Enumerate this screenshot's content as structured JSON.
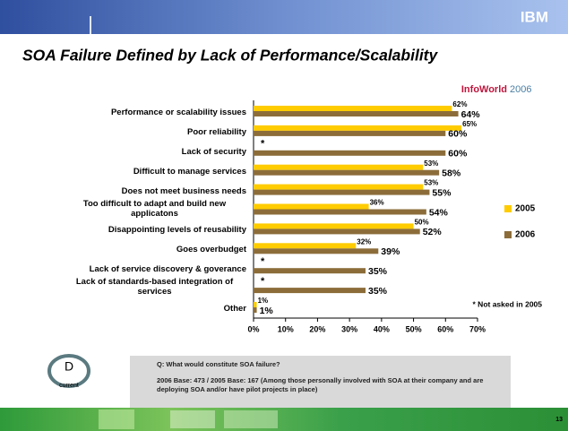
{
  "chart_data": {
    "type": "hbar",
    "title": "SOA Failure Defined by Lack of Performance/Scalability",
    "source": {
      "name": "InfoWorld",
      "year": "2006"
    },
    "categories": [
      "Performance or scalability issues",
      "Poor reliability",
      "Lack of security",
      "Difficult to manage services",
      "Does not meet business needs",
      "Too difficult to adapt and build new applicatons",
      "Disappointing levels of reusability",
      "Goes overbudget",
      "Lack of service discovery & goverance",
      "Lack of standards-based integration of services",
      "Other"
    ],
    "series": [
      {
        "name": "2005",
        "color": "#ffcc00",
        "values": [
          62,
          65,
          null,
          53,
          53,
          36,
          50,
          32,
          null,
          null,
          1
        ],
        "value_labels": [
          "62%",
          "65%",
          null,
          "53%",
          "53%",
          "36%",
          "50%",
          "32%",
          null,
          null,
          "1%"
        ]
      },
      {
        "name": "2006",
        "color": "#8c6d3a",
        "values": [
          64,
          60,
          60,
          58,
          55,
          54,
          52,
          39,
          35,
          35,
          1
        ],
        "value_labels": [
          "64%",
          "60%",
          "60%",
          "58%",
          "55%",
          "54%",
          "52%",
          "39%",
          "35%",
          "35%",
          "1%"
        ]
      }
    ],
    "not_asked_marker": "*",
    "footnote": "* Not asked in 2005",
    "xlim": [
      0,
      70
    ],
    "xticks": [
      {
        "value": 0,
        "label": "0%"
      },
      {
        "value": 10,
        "label": "10%"
      },
      {
        "value": 20,
        "label": "20%"
      },
      {
        "value": 30,
        "label": "30%"
      },
      {
        "value": 40,
        "label": "40%"
      },
      {
        "value": 50,
        "label": "50%"
      },
      {
        "value": 60,
        "label": "60%"
      },
      {
        "value": 70,
        "label": "70%"
      }
    ],
    "legend": "right"
  },
  "header": {
    "logo": "IBM"
  },
  "note": {
    "question": "Q: What would constitute SOA failure?",
    "base": "2006 Base: 473 / 2005 Base: 167 (Among those personally involved with SOA at their company and are deploying SOA and/or have pilot projects in place)"
  },
  "badge": {
    "letter": "D",
    "caption": "current"
  },
  "footer": {
    "page": "13"
  }
}
